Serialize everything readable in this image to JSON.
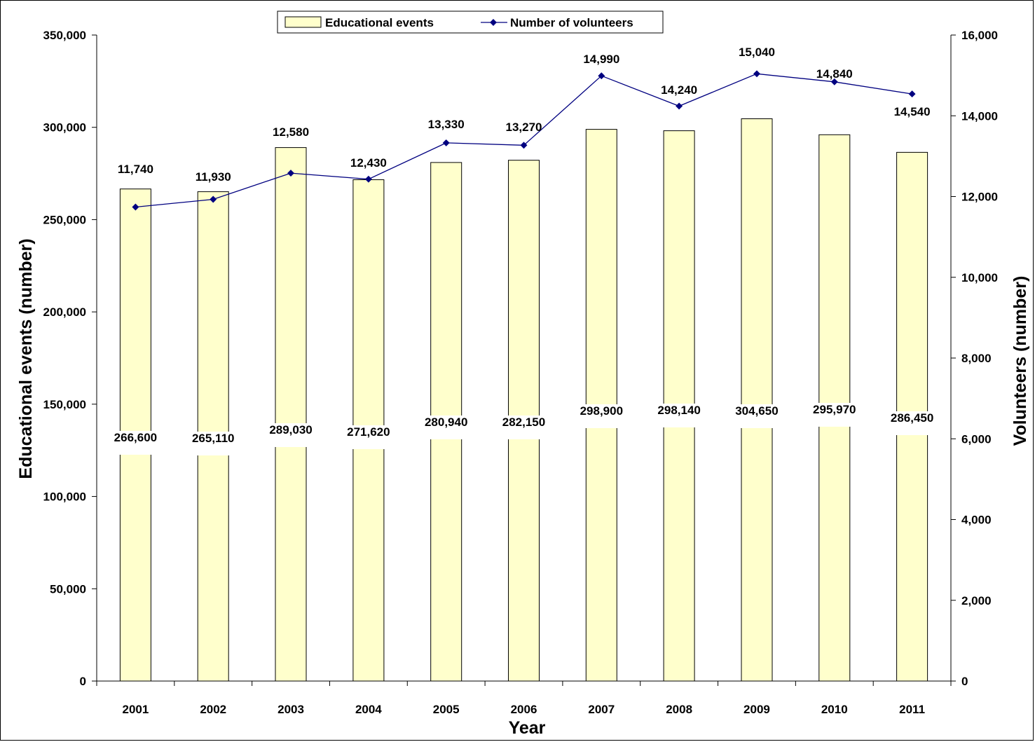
{
  "chart_data": {
    "type": "bar",
    "categories": [
      "2001",
      "2002",
      "2003",
      "2004",
      "2005",
      "2006",
      "2007",
      "2008",
      "2009",
      "2010",
      "2011"
    ],
    "series": [
      {
        "name": "Educational events",
        "type": "bar",
        "axis": "left",
        "values": [
          266600,
          265110,
          289030,
          271620,
          280940,
          282150,
          298900,
          298140,
          304650,
          295970,
          286450
        ],
        "labels": [
          "266,600",
          "265,110",
          "289,030",
          "271,620",
          "280,940",
          "282,150",
          "298,900",
          "298,140",
          "304,650",
          "295,970",
          "286,450"
        ],
        "color": "#FFFFCC"
      },
      {
        "name": "Number of volunteers",
        "type": "line",
        "axis": "right",
        "values": [
          11740,
          11930,
          12580,
          12430,
          13330,
          13270,
          14990,
          14240,
          15040,
          14840,
          14540
        ],
        "labels": [
          "11,740",
          "11,930",
          "12,580",
          "12,430",
          "13,330",
          "13,270",
          "14,990",
          "14,240",
          "15,040",
          "14,840",
          "14,540"
        ],
        "color": "#000080"
      }
    ],
    "xlabel": "Year",
    "ylabel": "Educational events (number)",
    "y2label": "Volunteers (number)",
    "ylim": [
      0,
      350000
    ],
    "y2lim": [
      0,
      16000
    ],
    "yticks": [
      0,
      50000,
      100000,
      150000,
      200000,
      250000,
      300000,
      350000
    ],
    "ytick_labels": [
      "0",
      "50,000",
      "100,000",
      "150,000",
      "200,000",
      "250,000",
      "300,000",
      "350,000"
    ],
    "y2ticks": [
      0,
      2000,
      4000,
      6000,
      8000,
      10000,
      12000,
      14000,
      16000
    ],
    "y2tick_labels": [
      "0",
      "2,000",
      "4,000",
      "6,000",
      "8,000",
      "10,000",
      "12,000",
      "14,000",
      "16,000"
    ],
    "grid": false,
    "legend_position": "top-center"
  }
}
